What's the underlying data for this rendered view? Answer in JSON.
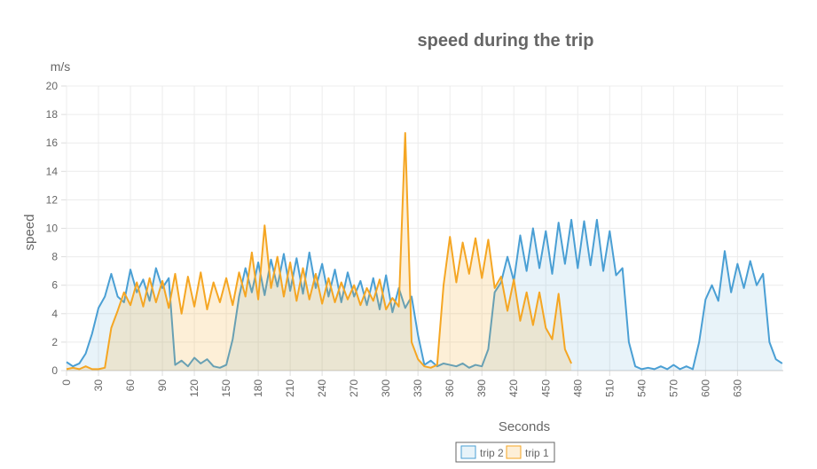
{
  "chart_data": {
    "type": "line",
    "title": "speed during the trip",
    "unit_label": "m/s",
    "y_label": "speed",
    "x_label": "Seconds",
    "x": [
      0,
      6,
      12,
      18,
      24,
      30,
      36,
      42,
      48,
      54,
      60,
      66,
      72,
      78,
      84,
      90,
      96,
      102,
      108,
      114,
      120,
      126,
      132,
      138,
      144,
      150,
      156,
      162,
      168,
      174,
      180,
      186,
      192,
      198,
      204,
      210,
      216,
      222,
      228,
      234,
      240,
      246,
      252,
      258,
      264,
      270,
      276,
      282,
      288,
      294,
      300,
      306,
      312,
      318,
      324,
      330,
      336,
      342,
      348,
      354,
      360,
      366,
      372,
      378,
      384,
      390,
      396,
      402,
      408,
      414,
      420,
      426,
      432,
      438,
      444,
      450,
      456,
      462,
      468,
      474,
      480,
      486,
      492,
      498,
      504,
      510,
      516,
      522,
      528,
      534,
      540,
      546,
      552,
      558,
      564,
      570,
      576,
      582,
      588,
      594,
      600,
      606,
      612,
      618,
      624,
      630,
      636,
      642,
      648,
      654,
      660,
      666,
      672
    ],
    "series": [
      {
        "name": "trip 2",
        "color": "#4a9fd4",
        "fill": "rgba(74,159,212,0.13)",
        "values": [
          0.6,
          0.3,
          0.5,
          1.2,
          2.6,
          4.4,
          5.2,
          6.8,
          5.2,
          4.8,
          7.1,
          5.5,
          6.4,
          4.9,
          7.2,
          5.8,
          6.5,
          0.4,
          0.7,
          0.3,
          0.9,
          0.5,
          0.8,
          0.3,
          0.2,
          0.4,
          2.2,
          5.2,
          7.2,
          5.5,
          7.6,
          5.3,
          7.8,
          5.9,
          8.2,
          5.6,
          7.9,
          5.4,
          8.3,
          5.8,
          7.5,
          5.2,
          7.1,
          4.8,
          6.9,
          5.2,
          6.3,
          4.6,
          6.5,
          4.3,
          6.7,
          4.1,
          5.8,
          4.4,
          5.2,
          2.5,
          0.4,
          0.7,
          0.3,
          0.5,
          0.4,
          0.3,
          0.5,
          0.2,
          0.4,
          0.3,
          1.5,
          5.5,
          6.2,
          8.0,
          6.3,
          9.5,
          7.0,
          10.0,
          7.2,
          9.8,
          6.8,
          10.4,
          7.5,
          10.6,
          7.2,
          10.5,
          7.4,
          10.6,
          7.0,
          9.8,
          6.7,
          7.2,
          2.0,
          0.3,
          0.1,
          0.2,
          0.1,
          0.3,
          0.1,
          0.4,
          0.1,
          0.3,
          0.1,
          2.0,
          5.0,
          6.0,
          4.9,
          8.4,
          5.5,
          7.5,
          5.8,
          7.7,
          6.0,
          6.8,
          2.0,
          0.8,
          0.5
        ]
      },
      {
        "name": "trip 1",
        "color": "#f5a623",
        "fill": "rgba(245,166,35,0.18)",
        "values": [
          0.1,
          0.2,
          0.1,
          0.3,
          0.1,
          0.1,
          0.2,
          3.0,
          4.2,
          5.5,
          4.6,
          6.2,
          4.5,
          6.5,
          4.8,
          6.3,
          4.4,
          6.8,
          4.0,
          6.6,
          4.5,
          6.9,
          4.3,
          6.2,
          4.8,
          6.5,
          4.6,
          6.9,
          5.2,
          8.3,
          5.0,
          10.2,
          5.8,
          8.0,
          5.2,
          7.6,
          4.9,
          7.2,
          5.0,
          6.8,
          4.7,
          6.5,
          4.8,
          6.2,
          5.0,
          6.0,
          4.6,
          5.8,
          4.9,
          6.4,
          4.3,
          5.1,
          4.5,
          16.7,
          2.0,
          0.8,
          0.3,
          0.2,
          0.4,
          6.0,
          9.4,
          6.2,
          9.0,
          6.8,
          9.3,
          6.5,
          9.2,
          5.8,
          6.6,
          4.2,
          6.4,
          3.5,
          5.5,
          3.2,
          5.5,
          3.0,
          2.2,
          5.4,
          1.5,
          0.5,
          null,
          null,
          null,
          null,
          null,
          null,
          null,
          null,
          null,
          null,
          null,
          null,
          null,
          null,
          null,
          null,
          null,
          null,
          null,
          null,
          null,
          null,
          null,
          null,
          null,
          null,
          null,
          null,
          null,
          null,
          null,
          null,
          null
        ]
      }
    ],
    "xlim": [
      0,
      673
    ],
    "xticks": [
      0,
      30,
      60,
      90,
      120,
      150,
      180,
      210,
      240,
      270,
      300,
      330,
      360,
      390,
      420,
      450,
      480,
      510,
      540,
      570,
      600,
      630
    ],
    "ylim": [
      0,
      20
    ],
    "yticks": [
      0,
      2,
      4,
      6,
      8,
      10,
      12,
      14,
      16,
      18,
      20
    ],
    "grid": true
  }
}
